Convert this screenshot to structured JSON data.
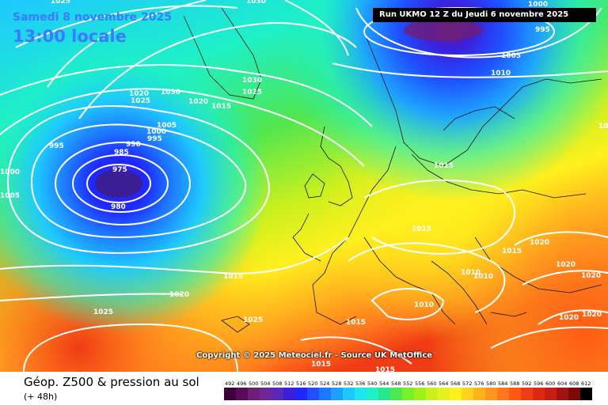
{
  "header": {
    "date": "Samedi 8 novembre 2025",
    "time": "13:00 locale",
    "run_label": "Run UKMO 12 Z du Jeudi 6 novembre 2025"
  },
  "footer": {
    "copyright": "Copyright © 2025 Meteociel.fr - Source UK MetOffice",
    "title": "Géop. Z500 & pression au sol",
    "subtitle": "(+ 48h)"
  },
  "legend": {
    "values": [
      "492",
      "496",
      "500",
      "504",
      "508",
      "512",
      "516",
      "520",
      "524",
      "528",
      "532",
      "536",
      "540",
      "544",
      "548",
      "552",
      "556",
      "560",
      "564",
      "568",
      "572",
      "576",
      "580",
      "584",
      "588",
      "592",
      "596",
      "600",
      "604",
      "608",
      "612"
    ],
    "colors": [
      "#3c0038",
      "#5a0a5a",
      "#6e1e78",
      "#6e2896",
      "#5a28b4",
      "#3c1edc",
      "#1e28ff",
      "#1e50ff",
      "#1e78ff",
      "#1ea0ff",
      "#1ec8ff",
      "#1ee6f0",
      "#1ef0c8",
      "#28e68c",
      "#50e650",
      "#78f028",
      "#a0f01e",
      "#c8f01e",
      "#e6f01e",
      "#fff01e",
      "#ffd21e",
      "#ffb41e",
      "#ff961e",
      "#ff781e",
      "#ff5a14",
      "#f03c14",
      "#dc2814",
      "#c81e14",
      "#a01414",
      "#780a0a",
      "#000000"
    ]
  },
  "isobar_labels": [
    "1025",
    "1030",
    "1000",
    "995",
    "1005",
    "1010",
    "1030",
    "1020",
    "1025",
    "1015",
    "1020",
    "1025",
    "1030",
    "1005",
    "1000",
    "995",
    "990",
    "985",
    "975",
    "980",
    "1000",
    "1005",
    "995",
    "1015",
    "1015",
    "1015",
    "1020",
    "1015",
    "1020",
    "1010",
    "1010",
    "1020",
    "1020",
    "1020",
    "1015",
    "1020",
    "1025",
    "1010",
    "1015",
    "1025",
    "1015",
    "1015"
  ]
}
